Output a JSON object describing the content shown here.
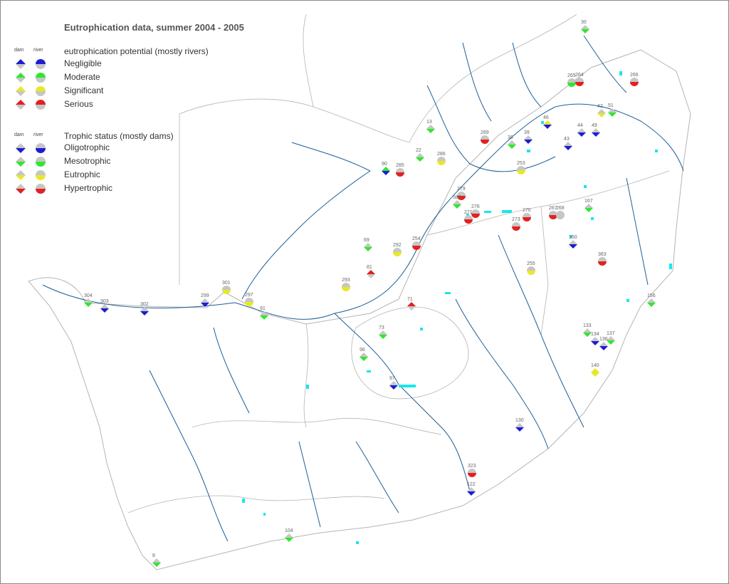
{
  "title": "Eutrophication data, summer 2004 - 2005",
  "legend": {
    "dam_label": "dam",
    "river_label": "river",
    "potential": {
      "heading": "eutrophication potential (mostly rivers)",
      "items": [
        {
          "label": "Negligible",
          "color": "#1c1cd6"
        },
        {
          "label": "Moderate",
          "color": "#2ee82e"
        },
        {
          "label": "Significant",
          "color": "#e8e82a"
        },
        {
          "label": "Serious",
          "color": "#e42020"
        }
      ]
    },
    "trophic": {
      "heading": "Trophic status (mostly dams)",
      "items": [
        {
          "label": "Oligotrophic",
          "color": "#1c1cd6"
        },
        {
          "label": "Mesotrophic",
          "color": "#2ee82e"
        },
        {
          "label": "Eutrophic",
          "color": "#e8e82a"
        },
        {
          "label": "Hypertrophic",
          "color": "#e42020"
        }
      ]
    }
  },
  "colors": {
    "border": "#b4b4b4",
    "river": "#1f5f96",
    "water": "#18e6ee",
    "neutral": "#c6c6c6"
  },
  "sites": [
    {
      "id": "30",
      "type": "dam",
      "top": "#c6c6c6",
      "bottom": "#2ee82e"
    },
    {
      "id": "266",
      "type": "river",
      "top": "#c6c6c6",
      "bottom": "#e42020"
    },
    {
      "id": "265",
      "type": "river",
      "top": "#c6c6c6",
      "bottom": "#2ee82e"
    },
    {
      "id": "264",
      "type": "river",
      "top": "#c6c6c6",
      "bottom": "#e42020"
    },
    {
      "id": "51",
      "type": "dam",
      "top": "#c6c6c6",
      "bottom": "#2ee82e"
    },
    {
      "id": "42",
      "type": "dam",
      "top": "#c6c6c6",
      "bottom": "#e8e82a"
    },
    {
      "id": "46",
      "type": "dam",
      "top": "#e8e82a",
      "bottom": "#1c1cd6"
    },
    {
      "id": "49",
      "type": "dam",
      "top": "#c6c6c6",
      "bottom": "#1c1cd6"
    },
    {
      "id": "44",
      "type": "dam",
      "top": "#c6c6c6",
      "bottom": "#1c1cd6"
    },
    {
      "id": "43",
      "type": "dam",
      "top": "#c6c6c6",
      "bottom": "#1c1cd6"
    },
    {
      "id": "39",
      "type": "dam",
      "top": "#c6c6c6",
      "bottom": "#1c1cd6"
    },
    {
      "id": "38",
      "type": "dam",
      "top": "#c6c6c6",
      "bottom": "#2ee82e"
    },
    {
      "id": "13",
      "type": "dam",
      "top": "#c6c6c6",
      "bottom": "#2ee82e"
    },
    {
      "id": "22",
      "type": "dam",
      "top": "#c6c6c6",
      "bottom": "#2ee82e"
    },
    {
      "id": "286",
      "type": "river",
      "top": "#c6c6c6",
      "bottom": "#e8e82a"
    },
    {
      "id": "289",
      "type": "river",
      "top": "#c6c6c6",
      "bottom": "#e42020"
    },
    {
      "id": "90",
      "type": "dam",
      "top": "#2ee82e",
      "bottom": "#1c1cd6"
    },
    {
      "id": "285",
      "type": "river",
      "top": "#c6c6c6",
      "bottom": "#e42020"
    },
    {
      "id": "253",
      "type": "river",
      "top": "#c6c6c6",
      "bottom": "#e8e82a"
    },
    {
      "id": "270",
      "type": "river",
      "top": "#c6c6c6",
      "bottom": "#e42020"
    },
    {
      "id": "167",
      "type": "dam",
      "top": "#c6c6c6",
      "bottom": "#2ee82e"
    },
    {
      "id": "267",
      "type": "river",
      "top": "#c6c6c6",
      "bottom": "#e42020"
    },
    {
      "id": "268",
      "type": "river",
      "top": "#c6c6c6",
      "bottom": "#c6c6c6"
    },
    {
      "id": "276",
      "type": "river",
      "top": "#c6c6c6",
      "bottom": "#e42020"
    },
    {
      "id": "150",
      "type": "dam",
      "top": "#c6c6c6",
      "bottom": "#1c1cd6"
    },
    {
      "id": "363",
      "type": "river",
      "top": "#c6c6c6",
      "bottom": "#e42020"
    },
    {
      "id": "255",
      "type": "river",
      "top": "#c6c6c6",
      "bottom": "#e8e82a"
    },
    {
      "id": "156",
      "type": "dam",
      "top": "#c6c6c6",
      "bottom": "#2ee82e"
    },
    {
      "id": "137",
      "type": "dam",
      "top": "#c6c6c6",
      "bottom": "#2ee82e"
    },
    {
      "id": "133",
      "type": "dam",
      "top": "#c6c6c6",
      "bottom": "#2ee82e"
    },
    {
      "id": "134",
      "type": "dam",
      "top": "#c6c6c6",
      "bottom": "#1c1cd6"
    },
    {
      "id": "136",
      "type": "dam",
      "top": "#c6c6c6",
      "bottom": "#1c1cd6"
    },
    {
      "id": "130",
      "type": "dam",
      "top": "#c6c6c6",
      "bottom": "#1c1cd6"
    },
    {
      "id": "122",
      "type": "dam",
      "top": "#c6c6c6",
      "bottom": "#1c1cd6"
    },
    {
      "id": "323",
      "type": "river",
      "top": "#c6c6c6",
      "bottom": "#e42020"
    },
    {
      "id": "104",
      "type": "dam",
      "top": "#c6c6c6",
      "bottom": "#2ee82e"
    },
    {
      "id": "304",
      "type": "dam",
      "top": "#c6c6c6",
      "bottom": "#2ee82e"
    },
    {
      "id": "303",
      "type": "dam",
      "top": "#c6c6c6",
      "bottom": "#1c1cd6"
    },
    {
      "id": "302",
      "type": "dam",
      "top": "#c6c6c6",
      "bottom": "#1c1cd6"
    },
    {
      "id": "299",
      "type": "dam",
      "top": "#c6c6c6",
      "bottom": "#1c1cd6"
    },
    {
      "id": "301",
      "type": "river",
      "top": "#c6c6c6",
      "bottom": "#e8e82a"
    },
    {
      "id": "297",
      "type": "river",
      "top": "#c6c6c6",
      "bottom": "#e8e82a"
    },
    {
      "id": "91",
      "type": "dam",
      "top": "#c6c6c6",
      "bottom": "#2ee82e"
    },
    {
      "id": "69",
      "type": "dam",
      "top": "#c6c6c6",
      "bottom": "#2ee82e"
    },
    {
      "id": "292",
      "type": "river",
      "top": "#c6c6c6",
      "bottom": "#e8e82a"
    },
    {
      "id": "254",
      "type": "river",
      "top": "#c6c6c6",
      "bottom": "#e42020"
    },
    {
      "id": "293",
      "type": "river",
      "top": "#c6c6c6",
      "bottom": "#e8e82a"
    },
    {
      "id": "81",
      "type": "dam",
      "top": "#e42020",
      "bottom": "#c6c6c6"
    },
    {
      "id": "71",
      "type": "dam",
      "top": "#e42020",
      "bottom": "#c6c6c6"
    },
    {
      "id": "73",
      "type": "dam",
      "top": "#c6c6c6",
      "bottom": "#2ee82e"
    },
    {
      "id": "96",
      "type": "dam",
      "top": "#c6c6c6",
      "bottom": "#2ee82e"
    },
    {
      "id": "97",
      "type": "dam",
      "top": "#c6c6c6",
      "bottom": "#1c1cd6"
    },
    {
      "id": "279",
      "type": "river",
      "top": "#c6c6c6",
      "bottom": "#e42020"
    },
    {
      "id": "580",
      "type": "dam",
      "top": "#c6c6c6",
      "bottom": "#2ee82e"
    },
    {
      "id": "271",
      "type": "river",
      "top": "#c6c6c6",
      "bottom": "#e42020"
    },
    {
      "id": "273",
      "type": "river",
      "top": "#c6c6c6",
      "bottom": "#e42020"
    },
    {
      "id": "140",
      "type": "dam",
      "top": "#e8e82a",
      "bottom": "#e8e82a"
    },
    {
      "id": "8",
      "type": "dam",
      "top": "#c6c6c6",
      "bottom": "#2ee82e"
    }
  ]
}
